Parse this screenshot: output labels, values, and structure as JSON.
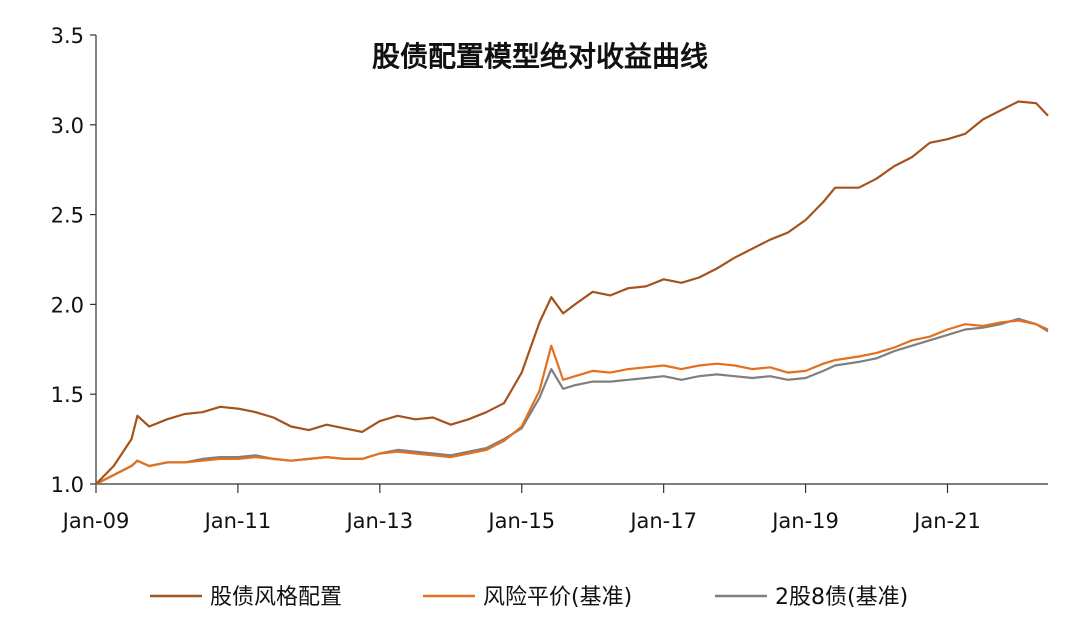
{
  "chart_data": {
    "type": "line",
    "title": "股债配置模型绝对收益曲线",
    "xlabel": "",
    "ylabel": "",
    "x_range": [
      "2009-01",
      "2022-06"
    ],
    "x_ticks": [
      "Jan-09",
      "Jan-11",
      "Jan-13",
      "Jan-15",
      "Jan-17",
      "Jan-19",
      "Jan-21"
    ],
    "y_ticks": [
      "1.0",
      "1.5",
      "2.0",
      "2.5",
      "3.0",
      "3.5"
    ],
    "ylim": [
      1.0,
      3.5
    ],
    "grid": false,
    "legend_position": "bottom",
    "x": [
      "2009-01",
      "2009-04",
      "2009-07",
      "2009-08",
      "2009-10",
      "2010-01",
      "2010-04",
      "2010-07",
      "2010-10",
      "2011-01",
      "2011-04",
      "2011-07",
      "2011-10",
      "2012-01",
      "2012-04",
      "2012-07",
      "2012-10",
      "2013-01",
      "2013-04",
      "2013-07",
      "2013-10",
      "2014-01",
      "2014-04",
      "2014-07",
      "2014-10",
      "2015-01",
      "2015-04",
      "2015-06",
      "2015-08",
      "2015-10",
      "2016-01",
      "2016-04",
      "2016-07",
      "2016-10",
      "2017-01",
      "2017-04",
      "2017-07",
      "2017-10",
      "2018-01",
      "2018-04",
      "2018-07",
      "2018-10",
      "2019-01",
      "2019-04",
      "2019-06",
      "2019-10",
      "2020-01",
      "2020-04",
      "2020-07",
      "2020-10",
      "2021-01",
      "2021-04",
      "2021-07",
      "2021-10",
      "2022-01",
      "2022-04",
      "2022-06"
    ],
    "series": [
      {
        "name": "股债风格配置",
        "color": "#a5531c",
        "values": [
          1.0,
          1.1,
          1.25,
          1.38,
          1.32,
          1.36,
          1.39,
          1.4,
          1.43,
          1.42,
          1.4,
          1.37,
          1.32,
          1.3,
          1.33,
          1.31,
          1.29,
          1.35,
          1.38,
          1.36,
          1.37,
          1.33,
          1.36,
          1.4,
          1.45,
          1.62,
          1.9,
          2.04,
          1.95,
          2.0,
          2.07,
          2.05,
          2.09,
          2.1,
          2.14,
          2.12,
          2.15,
          2.2,
          2.26,
          2.31,
          2.36,
          2.4,
          2.47,
          2.57,
          2.65,
          2.65,
          2.7,
          2.77,
          2.82,
          2.9,
          2.92,
          2.95,
          3.03,
          3.08,
          3.13,
          3.12,
          3.05
        ]
      },
      {
        "name": "风险平价(基准)",
        "color": "#e3701e",
        "values": [
          1.0,
          1.05,
          1.1,
          1.13,
          1.1,
          1.12,
          1.12,
          1.13,
          1.14,
          1.14,
          1.15,
          1.14,
          1.13,
          1.14,
          1.15,
          1.14,
          1.14,
          1.17,
          1.18,
          1.17,
          1.16,
          1.15,
          1.17,
          1.19,
          1.24,
          1.32,
          1.52,
          1.77,
          1.58,
          1.6,
          1.63,
          1.62,
          1.64,
          1.65,
          1.66,
          1.64,
          1.66,
          1.67,
          1.66,
          1.64,
          1.65,
          1.62,
          1.63,
          1.67,
          1.69,
          1.71,
          1.73,
          1.76,
          1.8,
          1.82,
          1.86,
          1.89,
          1.88,
          1.9,
          1.91,
          1.89,
          1.86
        ]
      },
      {
        "name": "2股8债(基准)",
        "color": "#7f7f7f",
        "values": [
          1.0,
          1.05,
          1.1,
          1.13,
          1.1,
          1.12,
          1.12,
          1.14,
          1.15,
          1.15,
          1.16,
          1.14,
          1.13,
          1.14,
          1.15,
          1.14,
          1.14,
          1.17,
          1.19,
          1.18,
          1.17,
          1.16,
          1.18,
          1.2,
          1.25,
          1.31,
          1.48,
          1.64,
          1.53,
          1.55,
          1.57,
          1.57,
          1.58,
          1.59,
          1.6,
          1.58,
          1.6,
          1.61,
          1.6,
          1.59,
          1.6,
          1.58,
          1.59,
          1.63,
          1.66,
          1.68,
          1.7,
          1.74,
          1.77,
          1.8,
          1.83,
          1.86,
          1.87,
          1.89,
          1.92,
          1.89,
          1.85
        ]
      }
    ]
  }
}
